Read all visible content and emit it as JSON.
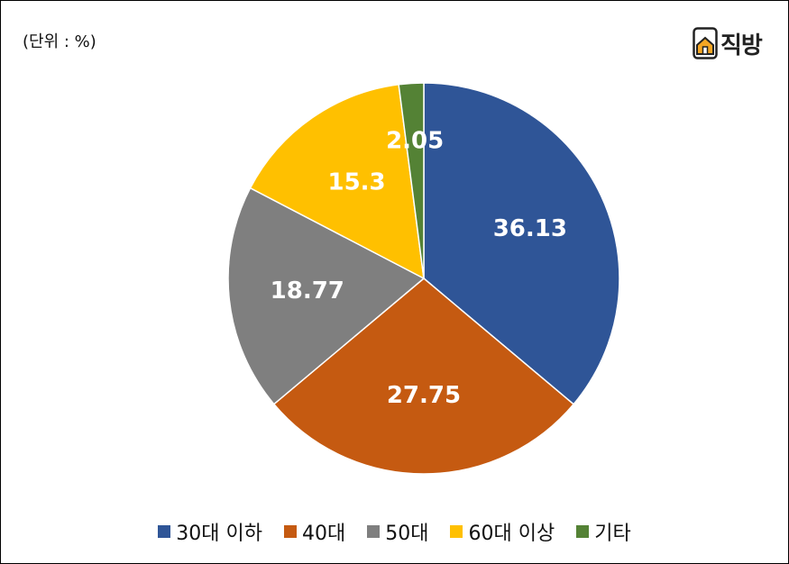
{
  "unit_label": "(단위 : %)",
  "logo": {
    "text": "직방",
    "icon": "house-icon"
  },
  "chart_data": {
    "type": "pie",
    "categories": [
      "30대 이하",
      "40대",
      "50대",
      "60대 이상",
      "기타"
    ],
    "values": [
      36.13,
      27.75,
      18.77,
      15.3,
      2.05
    ],
    "value_labels": [
      "36.13",
      "27.75",
      "18.77",
      "15.3",
      "2.05"
    ],
    "colors": [
      "#2F5597",
      "#C55A11",
      "#7F7F7F",
      "#FFC000",
      "#548235"
    ],
    "start_angle": "12 o'clock",
    "direction": "clockwise",
    "legend_placement": "bottom"
  }
}
